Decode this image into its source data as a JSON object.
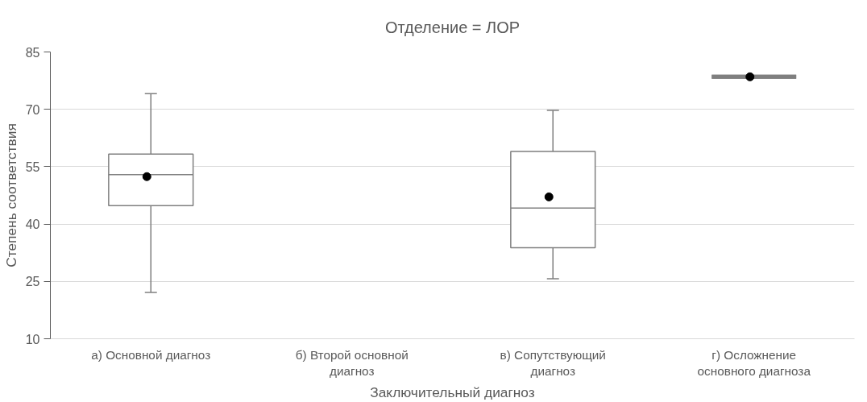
{
  "chart_data": {
    "type": "box",
    "title": "Отделение = ЛОР",
    "xlabel": "Заключительный диагноз",
    "ylabel": "Степень соответствия",
    "categories": [
      "а) Основной диагноз",
      "б) Второй основной диагноз",
      "в) Сопутствующий диагноз",
      "г) Осложнение основного диагноза"
    ],
    "boxes": [
      {
        "low": 22.1,
        "q1": 44.8,
        "median": 52.9,
        "q3": 58.3,
        "high": 74.1,
        "mean": 52.4
      },
      null,
      {
        "low": 25.7,
        "q1": 33.8,
        "median": 44.2,
        "q3": 59.0,
        "high": 69.7,
        "mean": 47.1
      },
      {
        "low": 78.5,
        "q1": 78.5,
        "median": 78.5,
        "q3": 78.5,
        "high": 78.5,
        "mean": 78.5
      }
    ],
    "ylim": [
      10,
      85
    ],
    "yticks": [
      10,
      25,
      40,
      55,
      70,
      85
    ],
    "grid": "y"
  }
}
